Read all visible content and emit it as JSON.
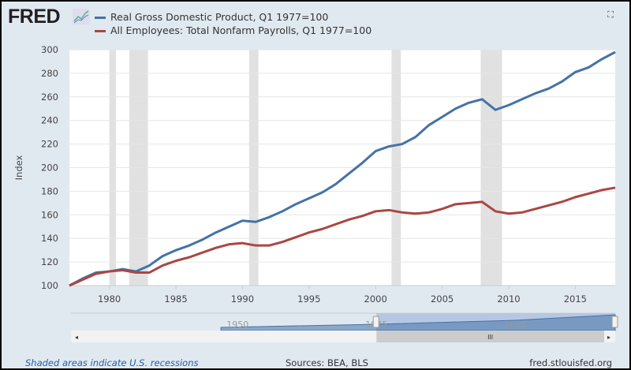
{
  "header": {
    "logo": "FRED",
    "fullscreen_icon": "expand-icon"
  },
  "footer": {
    "note": "Shaded areas indicate U.S. recessions",
    "sources": "Sources: BEA, BLS",
    "site": "fred.stlouisfed.org"
  },
  "navigator": {
    "labels": [
      "1950",
      "1975",
      "2000"
    ],
    "left_arrow": "◂",
    "right_arrow": "▸",
    "grip": "III"
  },
  "chart_data": {
    "type": "line",
    "ylabel": "Index",
    "ylim": [
      100,
      300
    ],
    "yticks": [
      100,
      120,
      140,
      160,
      180,
      200,
      220,
      240,
      260,
      280,
      300
    ],
    "xlim": [
      1977,
      2018
    ],
    "xticks": [
      1980,
      1985,
      1990,
      1995,
      2000,
      2005,
      2010,
      2015
    ],
    "grid": true,
    "legend_position": "top",
    "recessions": [
      [
        1980.0,
        1980.5
      ],
      [
        1981.5,
        1982.9
      ],
      [
        1990.5,
        1991.2
      ],
      [
        2001.2,
        2001.9
      ],
      [
        2007.9,
        2009.5
      ]
    ],
    "x": [
      1977,
      1978,
      1979,
      1980,
      1981,
      1982,
      1983,
      1984,
      1985,
      1986,
      1987,
      1988,
      1989,
      1990,
      1991,
      1992,
      1993,
      1994,
      1995,
      1996,
      1997,
      1998,
      1999,
      2000,
      2001,
      2002,
      2003,
      2004,
      2005,
      2006,
      2007,
      2008,
      2009,
      2010,
      2011,
      2012,
      2013,
      2014,
      2015,
      2016,
      2017,
      2018
    ],
    "series": [
      {
        "name": "Real Gross Domestic Product, Q1 1977=100",
        "color": "#4572a7",
        "values": [
          100,
          106,
          111,
          112,
          114,
          112,
          117,
          125,
          130,
          134,
          139,
          145,
          150,
          155,
          154,
          158,
          163,
          169,
          174,
          179,
          186,
          195,
          204,
          214,
          218,
          220,
          226,
          236,
          243,
          250,
          255,
          258,
          249,
          253,
          258,
          263,
          267,
          273,
          281,
          285,
          292,
          298
        ]
      },
      {
        "name": "All Employees: Total Nonfarm Payrolls, Q1 1977=100",
        "color": "#aa4643",
        "values": [
          100,
          105,
          110,
          112,
          113,
          111,
          111,
          117,
          121,
          124,
          128,
          132,
          135,
          136,
          134,
          134,
          137,
          141,
          145,
          148,
          152,
          156,
          159,
          163,
          164,
          162,
          161,
          162,
          165,
          169,
          170,
          171,
          163,
          161,
          162,
          165,
          168,
          171,
          175,
          178,
          181,
          183
        ]
      }
    ]
  }
}
